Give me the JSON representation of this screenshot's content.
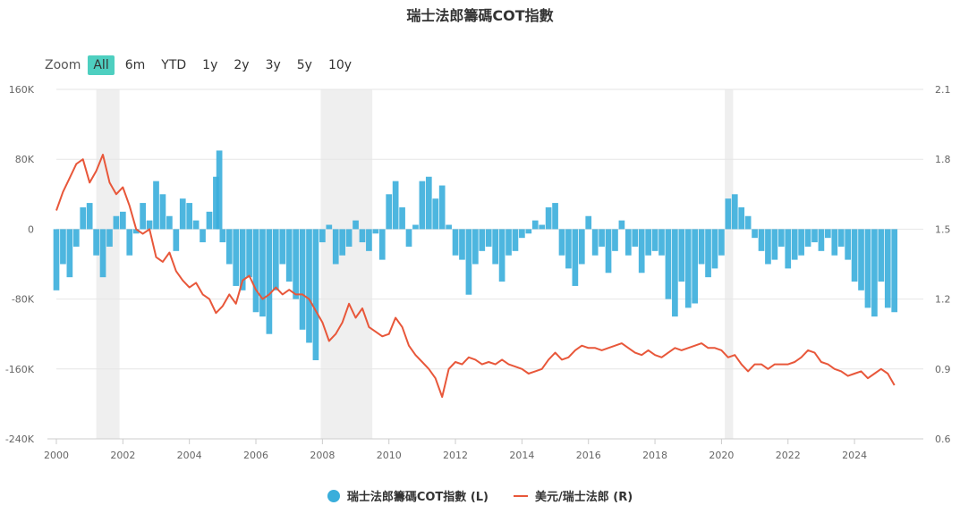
{
  "title": "瑞士法郎籌碼COT指數",
  "range_selector": {
    "zoom_label": "Zoom",
    "buttons": [
      "All",
      "6m",
      "YTD",
      "1y",
      "2y",
      "3y",
      "5y",
      "10y"
    ],
    "active": "All"
  },
  "colors": {
    "cot": "#3aaedb",
    "fx": "#e8573a",
    "shade": "#efefef",
    "grid": "#e6e6e6",
    "active_btn": "#4ecfc0"
  },
  "chart_data": {
    "type": "bar",
    "title": "瑞士法郎籌碼COT指數",
    "x_ticks": [
      "2000",
      "2002",
      "2004",
      "2006",
      "2008",
      "2010",
      "2012",
      "2014",
      "2016",
      "2018",
      "2020",
      "2022",
      "2024"
    ],
    "x_range": [
      2000.0,
      2025.8
    ],
    "y_left_ticks": [
      "160K",
      "80K",
      "0",
      "-80K",
      "-160K",
      "-240K"
    ],
    "y_left_range": [
      -240000,
      160000
    ],
    "y_right_ticks": [
      "2.1",
      "1.8",
      "1.5",
      "1.2",
      "0.9",
      "0.6"
    ],
    "y_right_range": [
      0.6,
      2.1
    ],
    "shaded_periods": [
      [
        2001.2,
        2001.9
      ],
      [
        2007.95,
        2009.5
      ],
      [
        2020.1,
        2020.35
      ]
    ],
    "legend_position": "bottom-center",
    "series": [
      {
        "name": "瑞士法郎籌碼COT指數 (L)",
        "type": "bar",
        "axis": "left",
        "color": "#3aaedb",
        "x": [
          2000.0,
          2000.2,
          2000.4,
          2000.6,
          2000.8,
          2001.0,
          2001.2,
          2001.4,
          2001.6,
          2001.8,
          2002.0,
          2002.2,
          2002.4,
          2002.6,
          2002.8,
          2003.0,
          2003.2,
          2003.4,
          2003.6,
          2003.8,
          2004.0,
          2004.2,
          2004.4,
          2004.6,
          2004.8,
          2004.9,
          2005.0,
          2005.2,
          2005.4,
          2005.6,
          2005.8,
          2006.0,
          2006.2,
          2006.4,
          2006.6,
          2006.8,
          2007.0,
          2007.2,
          2007.4,
          2007.6,
          2007.8,
          2008.0,
          2008.2,
          2008.4,
          2008.6,
          2008.8,
          2009.0,
          2009.2,
          2009.4,
          2009.6,
          2009.8,
          2010.0,
          2010.2,
          2010.4,
          2010.6,
          2010.8,
          2011.0,
          2011.2,
          2011.4,
          2011.6,
          2011.8,
          2012.0,
          2012.2,
          2012.4,
          2012.6,
          2012.8,
          2013.0,
          2013.2,
          2013.4,
          2013.6,
          2013.8,
          2014.0,
          2014.2,
          2014.4,
          2014.6,
          2014.8,
          2015.0,
          2015.2,
          2015.4,
          2015.6,
          2015.8,
          2016.0,
          2016.2,
          2016.4,
          2016.6,
          2016.8,
          2017.0,
          2017.2,
          2017.4,
          2017.6,
          2017.8,
          2018.0,
          2018.2,
          2018.4,
          2018.6,
          2018.8,
          2019.0,
          2019.2,
          2019.4,
          2019.6,
          2019.8,
          2020.0,
          2020.2,
          2020.4,
          2020.6,
          2020.8,
          2021.0,
          2021.2,
          2021.4,
          2021.6,
          2021.8,
          2022.0,
          2022.2,
          2022.4,
          2022.6,
          2022.8,
          2023.0,
          2023.2,
          2023.4,
          2023.6,
          2023.8,
          2024.0,
          2024.2,
          2024.4,
          2024.6,
          2024.8,
          2025.0,
          2025.2
        ],
        "values": [
          -70000,
          -40000,
          -55000,
          -20000,
          25000,
          30000,
          -30000,
          -55000,
          -20000,
          15000,
          20000,
          -30000,
          -5000,
          30000,
          10000,
          55000,
          40000,
          15000,
          -25000,
          35000,
          30000,
          10000,
          -15000,
          20000,
          60000,
          90000,
          -15000,
          -40000,
          -65000,
          -70000,
          -55000,
          -95000,
          -100000,
          -120000,
          -70000,
          -40000,
          -60000,
          -80000,
          -115000,
          -130000,
          -150000,
          -15000,
          5000,
          -40000,
          -30000,
          -20000,
          10000,
          -15000,
          -25000,
          -5000,
          -35000,
          40000,
          55000,
          25000,
          -20000,
          5000,
          55000,
          60000,
          35000,
          50000,
          5000,
          -30000,
          -35000,
          -75000,
          -40000,
          -25000,
          -20000,
          -40000,
          -60000,
          -30000,
          -25000,
          -10000,
          -5000,
          10000,
          5000,
          25000,
          30000,
          -30000,
          -45000,
          -65000,
          -40000,
          15000,
          -30000,
          -20000,
          -50000,
          -25000,
          10000,
          -30000,
          -20000,
          -50000,
          -30000,
          -25000,
          -30000,
          -80000,
          -100000,
          -60000,
          -90000,
          -85000,
          -40000,
          -55000,
          -45000,
          -30000,
          35000,
          40000,
          25000,
          15000,
          -10000,
          -25000,
          -40000,
          -35000,
          -20000,
          -45000,
          -35000,
          -30000,
          -20000,
          -15000,
          -25000,
          -10000,
          -30000,
          -20000,
          -35000,
          -60000,
          -70000,
          -90000,
          -100000,
          -60000,
          -90000,
          -95000
        ]
      },
      {
        "name": "美元/瑞士法郎 (R)",
        "type": "line",
        "axis": "right",
        "color": "#e8573a",
        "x": [
          2000.0,
          2000.2,
          2000.4,
          2000.6,
          2000.8,
          2001.0,
          2001.2,
          2001.4,
          2001.6,
          2001.8,
          2002.0,
          2002.2,
          2002.4,
          2002.6,
          2002.8,
          2003.0,
          2003.2,
          2003.4,
          2003.6,
          2003.8,
          2004.0,
          2004.2,
          2004.4,
          2004.6,
          2004.8,
          2005.0,
          2005.2,
          2005.4,
          2005.6,
          2005.8,
          2006.0,
          2006.2,
          2006.4,
          2006.6,
          2006.8,
          2007.0,
          2007.2,
          2007.4,
          2007.6,
          2007.8,
          2008.0,
          2008.2,
          2008.4,
          2008.6,
          2008.8,
          2009.0,
          2009.2,
          2009.4,
          2009.6,
          2009.8,
          2010.0,
          2010.2,
          2010.4,
          2010.6,
          2010.8,
          2011.0,
          2011.2,
          2011.4,
          2011.6,
          2011.8,
          2012.0,
          2012.2,
          2012.4,
          2012.6,
          2012.8,
          2013.0,
          2013.2,
          2013.4,
          2013.6,
          2013.8,
          2014.0,
          2014.2,
          2014.4,
          2014.6,
          2014.8,
          2015.0,
          2015.2,
          2015.4,
          2015.6,
          2015.8,
          2016.0,
          2016.2,
          2016.4,
          2016.6,
          2016.8,
          2017.0,
          2017.2,
          2017.4,
          2017.6,
          2017.8,
          2018.0,
          2018.2,
          2018.4,
          2018.6,
          2018.8,
          2019.0,
          2019.2,
          2019.4,
          2019.6,
          2019.8,
          2020.0,
          2020.2,
          2020.4,
          2020.6,
          2020.8,
          2021.0,
          2021.2,
          2021.4,
          2021.6,
          2021.8,
          2022.0,
          2022.2,
          2022.4,
          2022.6,
          2022.8,
          2023.0,
          2023.2,
          2023.4,
          2023.6,
          2023.8,
          2024.0,
          2024.2,
          2024.4,
          2024.6,
          2024.8,
          2025.0,
          2025.2
        ],
        "values": [
          1.58,
          1.66,
          1.72,
          1.78,
          1.8,
          1.7,
          1.75,
          1.82,
          1.7,
          1.65,
          1.68,
          1.6,
          1.5,
          1.48,
          1.5,
          1.38,
          1.36,
          1.4,
          1.32,
          1.28,
          1.25,
          1.27,
          1.22,
          1.2,
          1.14,
          1.17,
          1.22,
          1.18,
          1.28,
          1.3,
          1.24,
          1.2,
          1.22,
          1.25,
          1.22,
          1.24,
          1.22,
          1.22,
          1.2,
          1.15,
          1.1,
          1.02,
          1.05,
          1.1,
          1.18,
          1.12,
          1.16,
          1.08,
          1.06,
          1.04,
          1.05,
          1.12,
          1.08,
          1.0,
          0.96,
          0.93,
          0.9,
          0.86,
          0.78,
          0.9,
          0.93,
          0.92,
          0.95,
          0.94,
          0.92,
          0.93,
          0.92,
          0.94,
          0.92,
          0.91,
          0.9,
          0.88,
          0.89,
          0.9,
          0.94,
          0.97,
          0.94,
          0.95,
          0.98,
          1.0,
          0.99,
          0.99,
          0.98,
          0.99,
          1.0,
          1.01,
          0.99,
          0.97,
          0.96,
          0.98,
          0.96,
          0.95,
          0.97,
          0.99,
          0.98,
          0.99,
          1.0,
          1.01,
          0.99,
          0.99,
          0.98,
          0.95,
          0.96,
          0.92,
          0.89,
          0.92,
          0.92,
          0.9,
          0.92,
          0.92,
          0.92,
          0.93,
          0.95,
          0.98,
          0.97,
          0.93,
          0.92,
          0.9,
          0.89,
          0.87,
          0.88,
          0.89,
          0.86,
          0.88,
          0.9,
          0.88,
          0.83
        ]
      }
    ]
  }
}
